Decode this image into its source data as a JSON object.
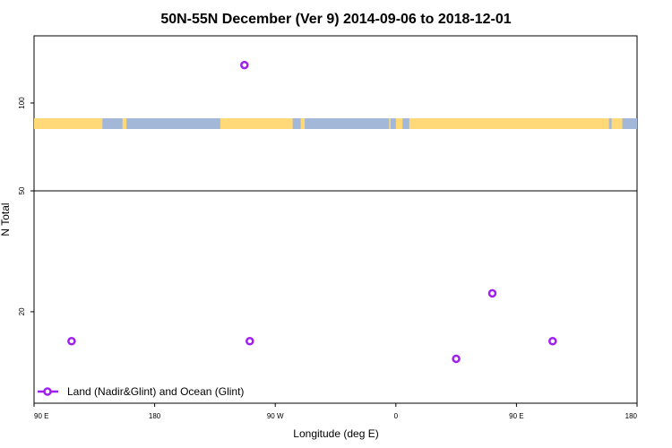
{
  "chart_data": {
    "type": "scatter",
    "title": "50N-55N December (Ver 9)   2014-09-06 to 2018-12-01",
    "xlabel": "Longitude (deg E)",
    "ylabel": "N Total",
    "x_ticks": [
      {
        "value": 90,
        "label": "90 E"
      },
      {
        "value": 180,
        "label": "180"
      },
      {
        "value": 270,
        "label": "90 W"
      },
      {
        "value": 360,
        "label": "0"
      },
      {
        "value": 450,
        "label": "90 E"
      },
      {
        "value": 540,
        "label": "180"
      }
    ],
    "xlim": [
      90,
      540
    ],
    "upper_panel": {
      "scale": "log",
      "y_ticks": [
        {
          "value": 100,
          "label": "100"
        },
        {
          "value": 50,
          "label": "50"
        }
      ],
      "ylim": [
        50,
        170
      ]
    },
    "lower_panel": {
      "scale": "log",
      "y_ticks": [
        {
          "value": 20,
          "label": "20"
        }
      ],
      "ylim": [
        10,
        50
      ]
    },
    "series": [
      {
        "name": "Land (Nadir&Glint) and Ocean (Glint)",
        "color": "#a020f0",
        "marker": "open-circle",
        "points": [
          {
            "x": 118,
            "y": 16
          },
          {
            "x": 247,
            "y": 135
          },
          {
            "x": 251,
            "y": 16
          },
          {
            "x": 405,
            "y": 14
          },
          {
            "x": 432,
            "y": 23
          },
          {
            "x": 477,
            "y": 16
          }
        ]
      }
    ],
    "land_ocean_strip": {
      "land_color": "#ffd978",
      "ocean_color": "#a3b8d8",
      "land_ranges": [
        [
          90,
          141
        ],
        [
          156,
          159
        ],
        [
          229,
          283
        ],
        [
          289,
          292
        ],
        [
          355,
          356
        ],
        [
          360,
          365
        ],
        [
          370,
          515
        ],
        [
          515,
          519
        ],
        [
          521,
          529
        ]
      ],
      "y_value": 85
    },
    "legend": {
      "position": "bottom-left"
    },
    "grid": false
  }
}
